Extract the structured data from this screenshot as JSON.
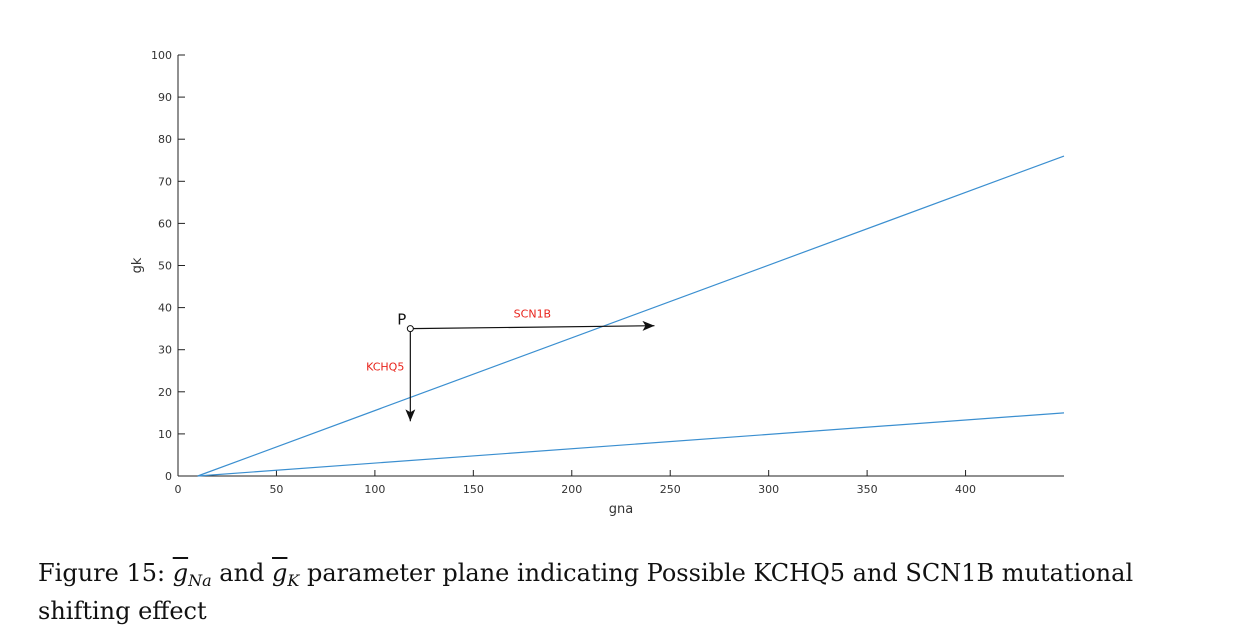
{
  "chart_data": {
    "type": "line",
    "xlabel": "gna",
    "ylabel": "gk",
    "xlim": [
      0,
      450
    ],
    "ylim": [
      0,
      100
    ],
    "x_ticks": [
      0,
      50,
      100,
      150,
      200,
      250,
      300,
      350,
      400
    ],
    "y_ticks": [
      0,
      10,
      20,
      30,
      40,
      50,
      60,
      70,
      80,
      90,
      100
    ],
    "series": [
      {
        "x": [
          10,
          450
        ],
        "y": [
          0,
          76
        ],
        "color": "#3b8fd0"
      },
      {
        "x": [
          10,
          450
        ],
        "y": [
          0,
          15
        ],
        "color": "#3b8fd0"
      }
    ],
    "point": {
      "label": "P",
      "x": 118,
      "y": 35
    },
    "arrows": [
      {
        "label": "SCN1B",
        "x_start": 118,
        "y_start": 35,
        "x_end": 242,
        "y_end": 35.7,
        "label_color": "#e8231b"
      },
      {
        "label": "KCHQ5",
        "x_start": 118,
        "y_start": 35,
        "x_end": 118,
        "y_end": 13,
        "label_color": "#e8231b"
      }
    ]
  },
  "caption": {
    "prefix": "Figure 15: ",
    "g_symbol": "g",
    "sub_na": "Na",
    "and_text": " and ",
    "sub_k": "K",
    "rest": " parameter plane indicating Possible KCHQ5 and SCN1B mutational shifting effect"
  }
}
